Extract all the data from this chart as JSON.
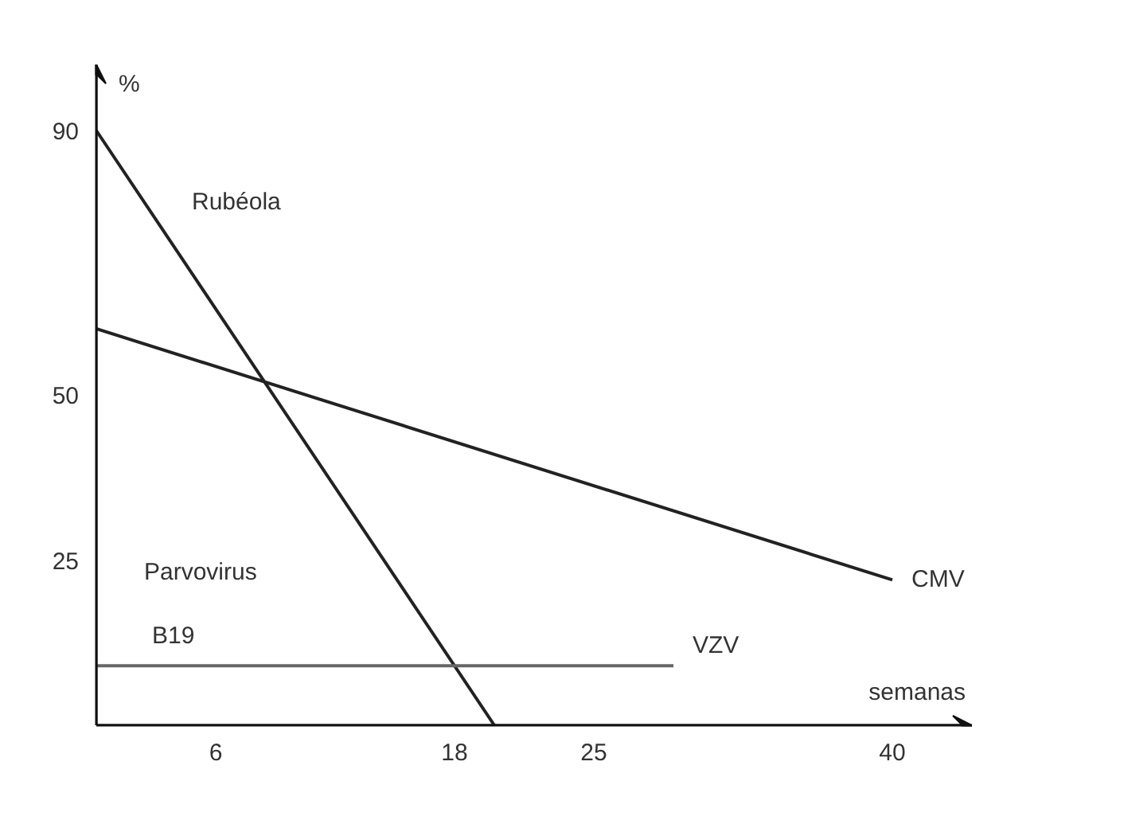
{
  "chart_data": {
    "type": "line",
    "xlabel": "semanas",
    "ylabel": "%",
    "xlim": [
      0,
      44
    ],
    "ylim": [
      0,
      100
    ],
    "xticks": [
      6,
      18,
      25,
      40
    ],
    "yticks": [
      25,
      50,
      90
    ],
    "grid": false,
    "marker": "none",
    "line_style": "solid",
    "series": [
      {
        "name": "Rubéola",
        "color": "#222222",
        "x": [
          0,
          20
        ],
        "values": [
          90,
          0
        ]
      },
      {
        "name": "CMV",
        "color": "#222222",
        "x": [
          0,
          40
        ],
        "values": [
          60,
          22
        ]
      },
      {
        "name": "VZV",
        "color": "#666666",
        "x": [
          0,
          29
        ],
        "values": [
          9,
          9
        ]
      }
    ],
    "annotations": [
      "Parvovirus",
      "B19"
    ]
  }
}
